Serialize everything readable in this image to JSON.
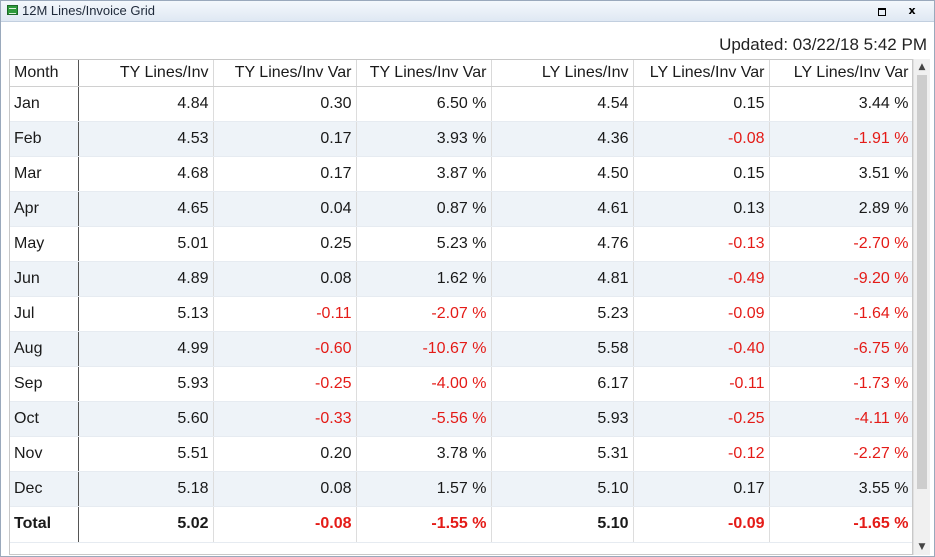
{
  "window": {
    "title": "12M Lines/Invoice Grid",
    "restore_glyph": "",
    "close_glyph": "x"
  },
  "updated_text": "Updated: 03/22/18 5:42 PM",
  "grid": {
    "columns": [
      "Month",
      "TY Lines/Inv",
      "TY Lines/Inv Var",
      "TY Lines/Inv Var",
      "LY Lines/Inv",
      "LY Lines/Inv Var",
      "LY Lines/Inv Var"
    ],
    "rows": [
      [
        "Jan",
        "4.84",
        "0.30",
        "6.50 %",
        "4.54",
        "0.15",
        "3.44 %"
      ],
      [
        "Feb",
        "4.53",
        "0.17",
        "3.93 %",
        "4.36",
        "-0.08",
        "-1.91 %"
      ],
      [
        "Mar",
        "4.68",
        "0.17",
        "3.87 %",
        "4.50",
        "0.15",
        "3.51 %"
      ],
      [
        "Apr",
        "4.65",
        "0.04",
        "0.87 %",
        "4.61",
        "0.13",
        "2.89 %"
      ],
      [
        "May",
        "5.01",
        "0.25",
        "5.23 %",
        "4.76",
        "-0.13",
        "-2.70 %"
      ],
      [
        "Jun",
        "4.89",
        "0.08",
        "1.62 %",
        "4.81",
        "-0.49",
        "-9.20 %"
      ],
      [
        "Jul",
        "5.13",
        "-0.11",
        "-2.07 %",
        "5.23",
        "-0.09",
        "-1.64 %"
      ],
      [
        "Aug",
        "4.99",
        "-0.60",
        "-10.67 %",
        "5.58",
        "-0.40",
        "-6.75 %"
      ],
      [
        "Sep",
        "5.93",
        "-0.25",
        "-4.00 %",
        "6.17",
        "-0.11",
        "-1.73 %"
      ],
      [
        "Oct",
        "5.60",
        "-0.33",
        "-5.56 %",
        "5.93",
        "-0.25",
        "-4.11 %"
      ],
      [
        "Nov",
        "5.51",
        "0.20",
        "3.78 %",
        "5.31",
        "-0.12",
        "-2.27 %"
      ],
      [
        "Dec",
        "5.18",
        "0.08",
        "1.57 %",
        "5.10",
        "0.17",
        "3.55 %"
      ]
    ],
    "total": [
      "Total",
      "5.02",
      "-0.08",
      "-1.55 %",
      "5.10",
      "-0.09",
      "-1.65 %"
    ]
  },
  "colors": {
    "negative": "#e41b17",
    "alt_row": "#eef3f8",
    "title_icon": "#2e9b3c"
  },
  "icons": {
    "title": "grid-table-icon",
    "restore": "restore-window-icon",
    "close": "close-icon",
    "scroll_up": "scroll-up-arrow-icon",
    "scroll_down": "scroll-down-arrow-icon"
  }
}
